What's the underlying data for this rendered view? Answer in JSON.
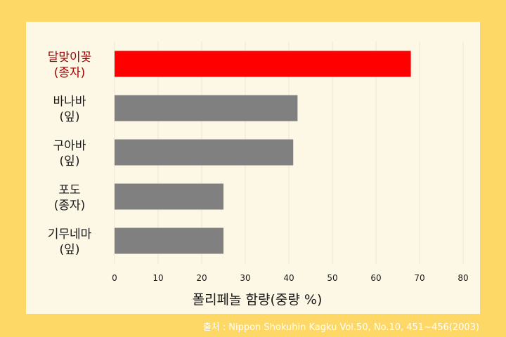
{
  "chart_data": {
    "type": "bar",
    "orientation": "horizontal",
    "categories": [
      [
        "달맞이꽃",
        "(종자)"
      ],
      [
        "바나바",
        "(잎)"
      ],
      [
        "구아바",
        "(잎)"
      ],
      [
        "포도",
        "(종자)"
      ],
      [
        "기무네마",
        "(잎)"
      ]
    ],
    "values": [
      68,
      42,
      41,
      25,
      25
    ],
    "highlight_index": 0,
    "xlabel": "폴리페놀 함량(중량 %)",
    "xlim": [
      0,
      80
    ],
    "xticks": [
      0,
      10,
      20,
      30,
      40,
      50,
      60,
      70,
      80
    ],
    "grid": "vertical, faint",
    "colors": {
      "highlight_bar": "#ff0000",
      "bar": "#808080",
      "highlight_label": "#a50000",
      "label": "#1a1a1a"
    }
  },
  "source": "출처 : Nippon Shokuhin Kagku Vol.50, No.10, 451~456(2003)",
  "colors": {
    "frame": "#fdd867",
    "panel": "#fdf7e6"
  }
}
